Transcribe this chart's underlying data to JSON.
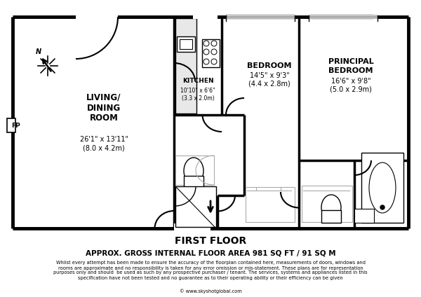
{
  "bg_color": "#ffffff",
  "title_floor": "FIRST FLOOR",
  "title_area": "APPROX. GROSS INTERNAL FLOOR AREA 981 SQ FT / 91 SQ M",
  "disclaimer": "Whilst every attempt has been made to ensure the accuracy of the floorplan contained here, measurements of doors, windows and\nrooms are approximate and no responsibility is taken for any error omission or mis-statement. These plans are for representation\npurposes only and should  be used as such by any prospective purchaser / tenant. The services, systems and appliances listed in this\nspecification have not been tested and no guarantee as to their operating ability or their efficiency can be given",
  "website": "© www.skyshotglobal.com"
}
